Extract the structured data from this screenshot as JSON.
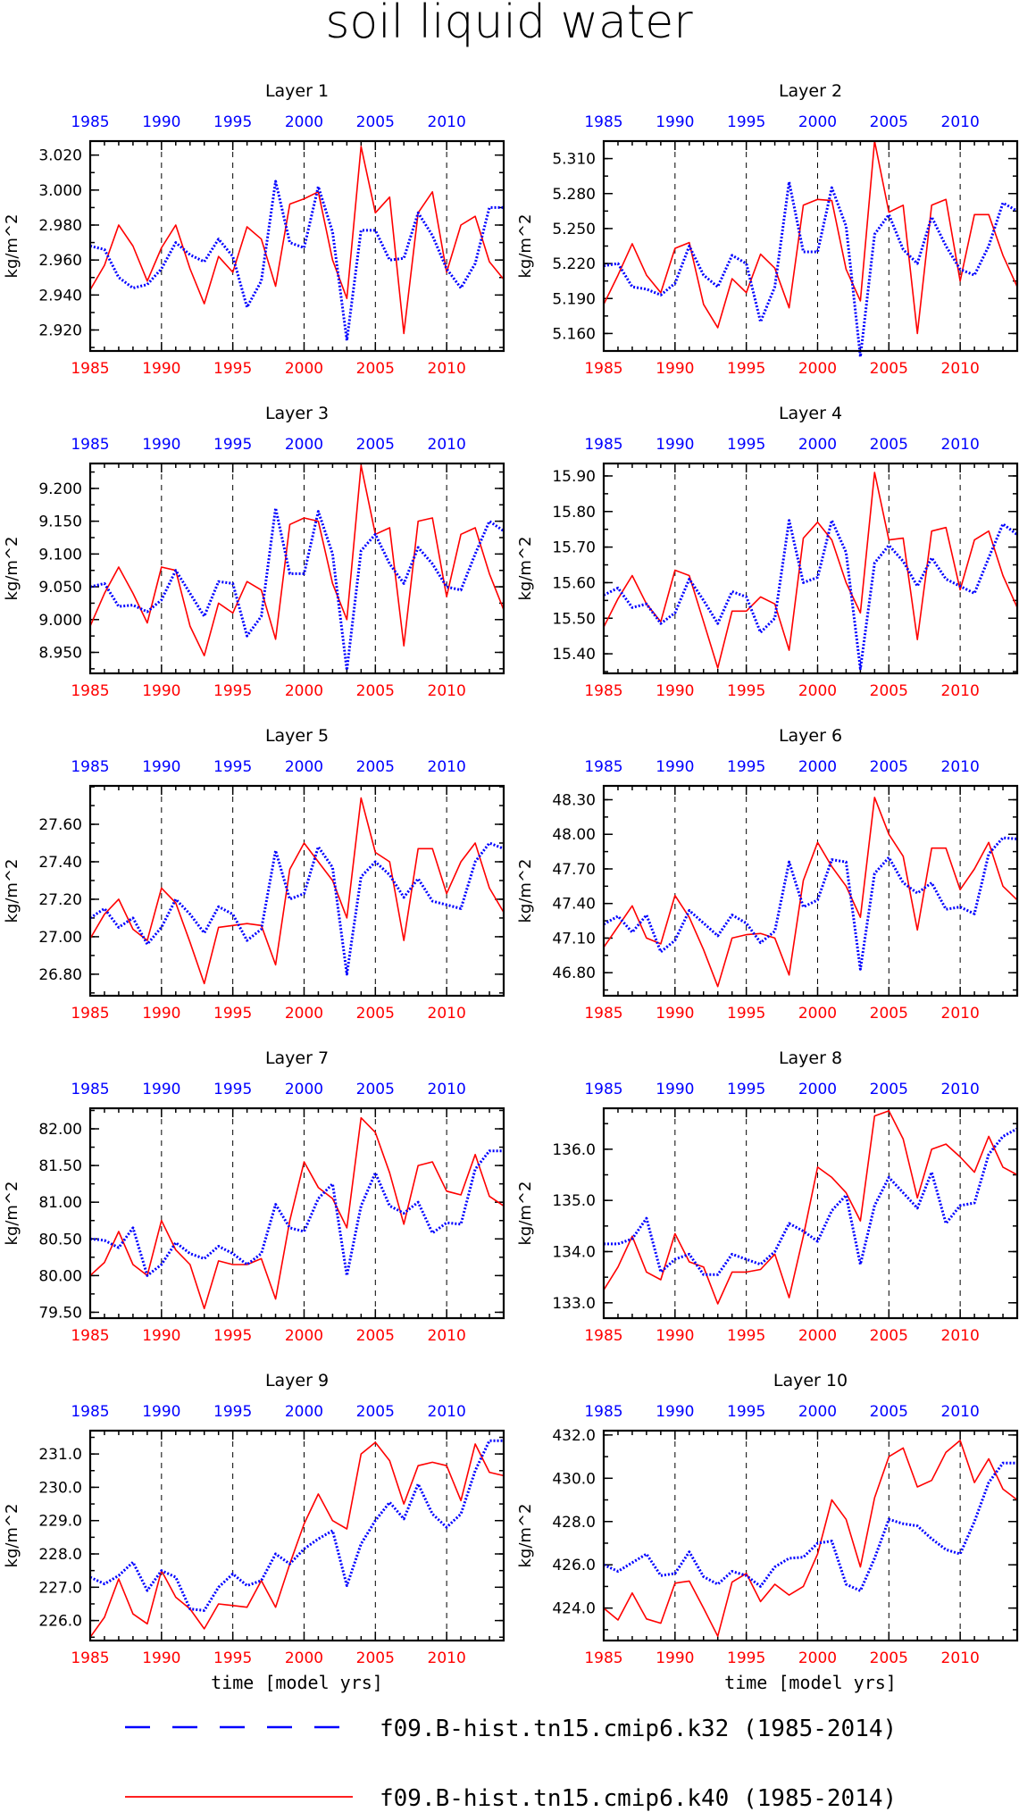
{
  "page_title": "soil liquid water",
  "colors": {
    "red": "#ff0000",
    "blue": "#0000ff",
    "axis": "#000000",
    "grid": "#000000"
  },
  "legend": [
    {
      "label": "f09.B-hist.tn15.cmip6.k32 (1985-2014)",
      "color": "#0000ff",
      "style": "dashed"
    },
    {
      "label": "f09.B-hist.tn15.cmip6.k40 (1985-2014)",
      "color": "#ff0000",
      "style": "solid"
    }
  ],
  "chart_data": [
    {
      "type": "line",
      "title": "Layer 1",
      "ylabel": "kg/m^2",
      "xlabel": "",
      "ylim": [
        2.908,
        3.028
      ],
      "xlim": [
        1985,
        2014
      ],
      "yticks": [
        "2.920",
        "2.940",
        "2.960",
        "2.980",
        "3.000",
        "3.020"
      ],
      "xticks": [
        "1985",
        "1990",
        "1995",
        "2000",
        "2005",
        "2010"
      ],
      "grid_x": true,
      "series": [
        {
          "color": "#ff0000",
          "style": "solid",
          "values": [
            2.943,
            2.957,
            2.98,
            2.968,
            2.948,
            2.967,
            2.98,
            2.955,
            2.935,
            2.962,
            2.953,
            2.979,
            2.972,
            2.945,
            2.992,
            2.995,
            2.999,
            2.96,
            2.938,
            3.025,
            2.987,
            2.996,
            2.918,
            2.987,
            2.999,
            2.953,
            2.98,
            2.985,
            2.959,
            2.949
          ]
        },
        {
          "color": "#0000ff",
          "style": "dashed",
          "values": [
            2.968,
            2.966,
            2.95,
            2.944,
            2.946,
            2.955,
            2.97,
            2.963,
            2.959,
            2.972,
            2.962,
            2.933,
            2.948,
            3.005,
            2.97,
            2.967,
            3.002,
            2.976,
            2.914,
            2.977,
            2.977,
            2.96,
            2.961,
            2.987,
            2.974,
            2.955,
            2.944,
            2.958,
            2.99,
            2.99
          ]
        }
      ]
    },
    {
      "type": "line",
      "title": "Layer 2",
      "ylabel": "kg/m^2",
      "xlabel": "",
      "ylim": [
        5.145,
        5.325
      ],
      "xlim": [
        1985,
        2014
      ],
      "yticks": [
        "5.160",
        "5.190",
        "5.220",
        "5.250",
        "5.280",
        "5.310"
      ],
      "xticks": [
        "1985",
        "1990",
        "1995",
        "2000",
        "2005",
        "2010"
      ],
      "grid_x": true,
      "series": [
        {
          "color": "#ff0000",
          "style": "solid",
          "values": [
            5.185,
            5.21,
            5.237,
            5.21,
            5.195,
            5.233,
            5.238,
            5.185,
            5.165,
            5.207,
            5.195,
            5.228,
            5.216,
            5.182,
            5.27,
            5.275,
            5.274,
            5.215,
            5.188,
            5.325,
            5.264,
            5.27,
            5.16,
            5.27,
            5.275,
            5.205,
            5.262,
            5.262,
            5.227,
            5.2
          ]
        },
        {
          "color": "#0000ff",
          "style": "dashed",
          "values": [
            5.218,
            5.22,
            5.2,
            5.198,
            5.193,
            5.203,
            5.235,
            5.21,
            5.2,
            5.227,
            5.22,
            5.17,
            5.2,
            5.29,
            5.23,
            5.23,
            5.285,
            5.252,
            5.14,
            5.245,
            5.262,
            5.232,
            5.22,
            5.26,
            5.235,
            5.215,
            5.21,
            5.235,
            5.272,
            5.265
          ]
        }
      ]
    },
    {
      "type": "line",
      "title": "Layer 3",
      "ylabel": "kg/m^2",
      "xlabel": "",
      "ylim": [
        8.918,
        9.238
      ],
      "xlim": [
        1985,
        2014
      ],
      "yticks": [
        "8.950",
        "9.000",
        "9.050",
        "9.100",
        "9.150",
        "9.200"
      ],
      "xticks": [
        "1985",
        "1990",
        "1995",
        "2000",
        "2005",
        "2010"
      ],
      "grid_x": true,
      "series": [
        {
          "color": "#ff0000",
          "style": "solid",
          "values": [
            8.99,
            9.04,
            9.08,
            9.04,
            8.995,
            9.08,
            9.075,
            8.99,
            8.945,
            9.025,
            9.01,
            9.058,
            9.045,
            8.97,
            9.145,
            9.155,
            9.15,
            9.055,
            9.0,
            9.235,
            9.13,
            9.14,
            8.96,
            9.15,
            9.155,
            9.035,
            9.13,
            9.14,
            9.07,
            9.015
          ]
        },
        {
          "color": "#0000ff",
          "style": "dashed",
          "values": [
            9.05,
            9.055,
            9.02,
            9.022,
            9.012,
            9.03,
            9.075,
            9.04,
            9.005,
            9.058,
            9.055,
            8.975,
            9.005,
            9.17,
            9.07,
            9.07,
            9.165,
            9.1,
            8.923,
            9.105,
            9.13,
            9.085,
            9.055,
            9.11,
            9.085,
            9.05,
            9.045,
            9.1,
            9.15,
            9.135
          ]
        }
      ]
    },
    {
      "type": "line",
      "title": "Layer 4",
      "ylabel": "kg/m^2",
      "xlabel": "",
      "ylim": [
        15.345,
        15.935
      ],
      "xlim": [
        1985,
        2014
      ],
      "yticks": [
        "15.40",
        "15.50",
        "15.60",
        "15.70",
        "15.80",
        "15.90"
      ],
      "xticks": [
        "1985",
        "1990",
        "1995",
        "2000",
        "2005",
        "2010"
      ],
      "grid_x": true,
      "series": [
        {
          "color": "#ff0000",
          "style": "solid",
          "values": [
            15.475,
            15.555,
            15.62,
            15.54,
            15.49,
            15.635,
            15.62,
            15.49,
            15.36,
            15.52,
            15.52,
            15.56,
            15.54,
            15.41,
            15.725,
            15.77,
            15.72,
            15.6,
            15.515,
            15.91,
            15.72,
            15.725,
            15.44,
            15.745,
            15.755,
            15.58,
            15.72,
            15.745,
            15.62,
            15.53
          ]
        },
        {
          "color": "#0000ff",
          "style": "dashed",
          "values": [
            15.565,
            15.585,
            15.53,
            15.54,
            15.485,
            15.515,
            15.61,
            15.55,
            15.485,
            15.575,
            15.56,
            15.46,
            15.5,
            15.775,
            15.6,
            15.615,
            15.775,
            15.685,
            15.358,
            15.655,
            15.705,
            15.66,
            15.59,
            15.67,
            15.61,
            15.59,
            15.57,
            15.67,
            15.765,
            15.735
          ]
        }
      ]
    },
    {
      "type": "line",
      "title": "Layer 5",
      "ylabel": "kg/m^2",
      "xlabel": "",
      "ylim": [
        26.685,
        27.805
      ],
      "xlim": [
        1985,
        2014
      ],
      "yticks": [
        "26.80",
        "27.00",
        "27.20",
        "27.40",
        "27.60"
      ],
      "xticks": [
        "1985",
        "1990",
        "1995",
        "2000",
        "2005",
        "2010"
      ],
      "grid_x": true,
      "series": [
        {
          "color": "#ff0000",
          "style": "solid",
          "values": [
            26.99,
            27.12,
            27.2,
            27.04,
            26.98,
            27.26,
            27.18,
            26.97,
            26.75,
            27.05,
            27.06,
            27.07,
            27.06,
            26.85,
            27.36,
            27.5,
            27.4,
            27.3,
            27.1,
            27.74,
            27.45,
            27.4,
            26.98,
            27.47,
            27.47,
            27.23,
            27.4,
            27.5,
            27.26,
            27.13
          ]
        },
        {
          "color": "#0000ff",
          "style": "dashed",
          "values": [
            27.1,
            27.15,
            27.05,
            27.1,
            26.96,
            27.05,
            27.2,
            27.12,
            27.02,
            27.16,
            27.12,
            26.98,
            27.04,
            27.46,
            27.2,
            27.23,
            27.48,
            27.37,
            26.8,
            27.32,
            27.4,
            27.33,
            27.21,
            27.31,
            27.19,
            27.17,
            27.15,
            27.4,
            27.5,
            27.47
          ]
        }
      ]
    },
    {
      "type": "line",
      "title": "Layer 6",
      "ylabel": "kg/m^2",
      "xlabel": "",
      "ylim": [
        46.6,
        48.42
      ],
      "xlim": [
        1985,
        2014
      ],
      "yticks": [
        "46.80",
        "47.10",
        "47.40",
        "47.70",
        "48.00",
        "48.30"
      ],
      "xticks": [
        "1985",
        "1990",
        "1995",
        "2000",
        "2005",
        "2010"
      ],
      "grid_x": true,
      "series": [
        {
          "color": "#ff0000",
          "style": "solid",
          "values": [
            47.02,
            47.2,
            47.38,
            47.1,
            47.05,
            47.47,
            47.28,
            47.0,
            46.68,
            47.1,
            47.13,
            47.14,
            47.1,
            46.78,
            47.6,
            47.93,
            47.72,
            47.55,
            47.28,
            48.32,
            48.0,
            47.81,
            47.17,
            47.88,
            47.88,
            47.52,
            47.7,
            47.93,
            47.55,
            47.43
          ]
        },
        {
          "color": "#0000ff",
          "style": "dashed",
          "values": [
            47.22,
            47.29,
            47.15,
            47.3,
            46.98,
            47.08,
            47.34,
            47.23,
            47.12,
            47.3,
            47.23,
            47.06,
            47.16,
            47.76,
            47.37,
            47.43,
            47.78,
            47.76,
            46.83,
            47.66,
            47.8,
            47.58,
            47.49,
            47.58,
            47.35,
            47.37,
            47.31,
            47.83,
            47.97,
            47.96
          ]
        }
      ]
    },
    {
      "type": "line",
      "title": "Layer 7",
      "ylabel": "kg/m^2",
      "xlabel": "",
      "ylim": [
        79.42,
        82.28
      ],
      "xlim": [
        1985,
        2014
      ],
      "yticks": [
        "79.50",
        "80.00",
        "80.50",
        "81.00",
        "81.50",
        "82.00"
      ],
      "xticks": [
        "1985",
        "1990",
        "1995",
        "2000",
        "2005",
        "2010"
      ],
      "grid_x": true,
      "series": [
        {
          "color": "#ff0000",
          "style": "solid",
          "values": [
            80.0,
            80.18,
            80.6,
            80.15,
            80.0,
            80.75,
            80.35,
            80.15,
            79.55,
            80.2,
            80.15,
            80.15,
            80.23,
            79.68,
            80.75,
            81.55,
            81.2,
            81.05,
            80.65,
            82.15,
            81.95,
            81.4,
            80.7,
            81.5,
            81.55,
            81.15,
            81.1,
            81.65,
            81.08,
            80.95
          ]
        },
        {
          "color": "#0000ff",
          "style": "dashed",
          "values": [
            80.5,
            80.48,
            80.38,
            80.65,
            80.0,
            80.15,
            80.45,
            80.3,
            80.23,
            80.4,
            80.3,
            80.15,
            80.3,
            80.97,
            80.65,
            80.6,
            81.05,
            81.25,
            80.0,
            80.95,
            81.4,
            80.95,
            80.85,
            81.0,
            80.58,
            80.72,
            80.7,
            81.45,
            81.7,
            81.7
          ]
        }
      ]
    },
    {
      "type": "line",
      "title": "Layer 8",
      "ylabel": "kg/m^2",
      "xlabel": "",
      "ylim": [
        132.7,
        136.8
      ],
      "xlim": [
        1985,
        2014
      ],
      "yticks": [
        "133.0",
        "134.0",
        "135.0",
        "136.0"
      ],
      "xticks": [
        "1985",
        "1990",
        "1995",
        "2000",
        "2005",
        "2010"
      ],
      "grid_x": true,
      "series": [
        {
          "color": "#ff0000",
          "style": "solid",
          "values": [
            133.25,
            133.7,
            134.3,
            133.6,
            133.45,
            134.35,
            133.8,
            133.7,
            132.98,
            133.6,
            133.6,
            133.65,
            133.95,
            133.1,
            134.3,
            135.65,
            135.45,
            135.15,
            134.6,
            136.65,
            136.75,
            136.2,
            135.05,
            136.0,
            136.1,
            135.85,
            135.55,
            136.25,
            135.65,
            135.5
          ]
        },
        {
          "color": "#0000ff",
          "style": "dashed",
          "values": [
            134.15,
            134.15,
            134.25,
            134.65,
            133.6,
            133.85,
            133.95,
            133.55,
            133.55,
            133.95,
            133.85,
            133.75,
            134.0,
            134.55,
            134.4,
            134.2,
            134.8,
            135.1,
            133.75,
            134.9,
            135.45,
            135.15,
            134.85,
            135.55,
            134.55,
            134.9,
            134.95,
            135.9,
            136.25,
            136.4
          ]
        }
      ]
    },
    {
      "type": "line",
      "title": "Layer 9",
      "ylabel": "kg/m^2",
      "xlabel": "time [model yrs]",
      "ylim": [
        225.4,
        231.7
      ],
      "xlim": [
        1985,
        2014
      ],
      "yticks": [
        "226.0",
        "227.0",
        "228.0",
        "229.0",
        "230.0",
        "231.0"
      ],
      "xticks": [
        "1985",
        "1990",
        "1995",
        "2000",
        "2005",
        "2010"
      ],
      "grid_x": true,
      "series": [
        {
          "color": "#ff0000",
          "style": "solid",
          "values": [
            225.5,
            226.1,
            227.25,
            226.2,
            225.9,
            227.5,
            226.7,
            226.35,
            225.75,
            226.5,
            226.45,
            226.4,
            227.2,
            226.4,
            227.7,
            228.9,
            229.8,
            229.0,
            228.75,
            231.0,
            231.35,
            230.8,
            229.5,
            230.65,
            230.75,
            230.65,
            229.6,
            231.3,
            230.45,
            230.35
          ]
        },
        {
          "color": "#0000ff",
          "style": "dashed",
          "values": [
            227.3,
            227.1,
            227.35,
            227.75,
            226.9,
            227.5,
            227.3,
            226.35,
            226.3,
            227.0,
            227.4,
            227.05,
            227.2,
            228.0,
            227.7,
            228.15,
            228.45,
            228.7,
            227.05,
            228.3,
            229.0,
            229.55,
            229.05,
            230.1,
            229.2,
            228.8,
            229.2,
            230.5,
            231.4,
            231.4
          ]
        }
      ]
    },
    {
      "type": "line",
      "title": "Layer 10",
      "ylabel": "kg/m^2",
      "xlabel": "time [model yrs]",
      "ylim": [
        422.5,
        432.2
      ],
      "xlim": [
        1985,
        2014
      ],
      "yticks": [
        "424.0",
        "426.0",
        "428.0",
        "430.0",
        "432.0"
      ],
      "xticks": [
        "1985",
        "1990",
        "1995",
        "2000",
        "2005",
        "2010"
      ],
      "grid_x": true,
      "series": [
        {
          "color": "#ff0000",
          "style": "solid",
          "values": [
            424.0,
            423.45,
            424.7,
            423.5,
            423.3,
            425.15,
            425.25,
            424.0,
            422.7,
            425.2,
            425.6,
            424.3,
            425.1,
            424.6,
            425.0,
            426.5,
            429.0,
            428.1,
            425.9,
            429.1,
            431.0,
            431.4,
            429.6,
            429.9,
            431.2,
            431.75,
            429.8,
            430.9,
            429.5,
            429.0
          ]
        },
        {
          "color": "#0000ff",
          "style": "dashed",
          "values": [
            426.0,
            425.7,
            426.1,
            426.5,
            425.5,
            425.6,
            426.6,
            425.45,
            425.1,
            425.7,
            425.5,
            425.0,
            425.9,
            426.3,
            426.35,
            427.0,
            427.1,
            425.1,
            424.8,
            426.3,
            428.1,
            427.9,
            427.8,
            427.2,
            426.7,
            426.5,
            428.0,
            429.8,
            430.7,
            430.7
          ]
        }
      ]
    }
  ]
}
